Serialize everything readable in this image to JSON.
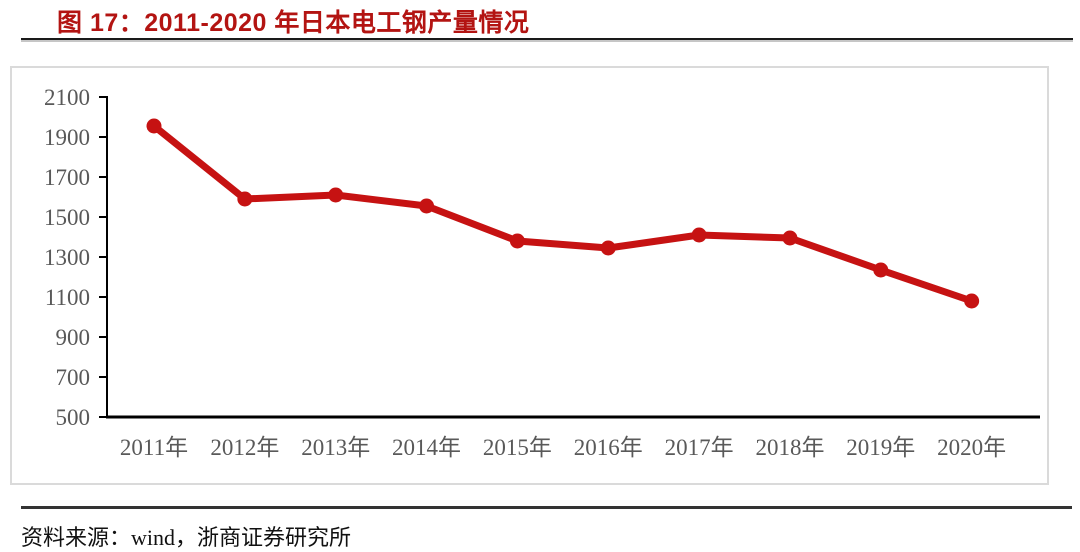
{
  "title": "图 17：2011-2020 年日本电工钢产量情况",
  "source": "资料来源：wind，浙商证券研究所",
  "colors": {
    "title": "#b31412",
    "line": "#c61212",
    "marker": "#c61212",
    "axis_label": "#595959",
    "axis_line": "#000000",
    "frame_border": "#dadada"
  },
  "chart_data": {
    "type": "line",
    "title": "图 17：2011-2020 年日本电工钢产量情况",
    "series_name": "日本电工钢产量",
    "categories": [
      "2011年",
      "2012年",
      "2013年",
      "2014年",
      "2015年",
      "2016年",
      "2017年",
      "2018年",
      "2019年",
      "2020年"
    ],
    "values": [
      1955,
      1590,
      1610,
      1555,
      1380,
      1345,
      1410,
      1395,
      1235,
      1080
    ],
    "xlabel": "",
    "ylabel": "",
    "ylim": [
      500,
      2100
    ],
    "yticks": [
      500,
      700,
      900,
      1100,
      1300,
      1500,
      1700,
      1900,
      2100
    ],
    "grid": false,
    "legend_position": "none",
    "marker": "circle"
  }
}
